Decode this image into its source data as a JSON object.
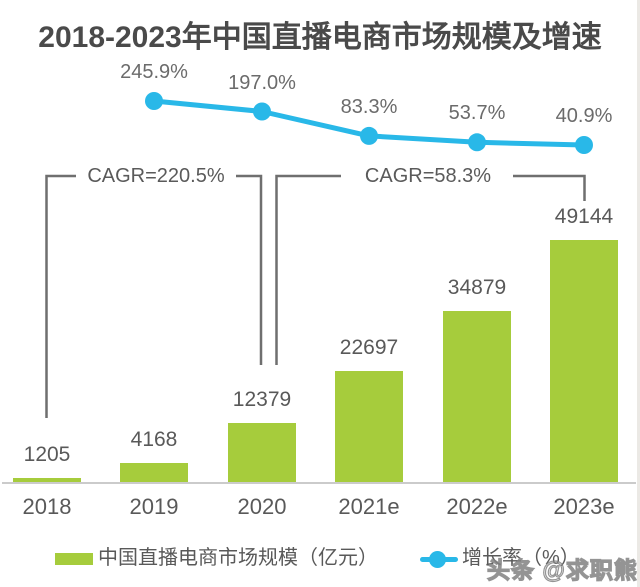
{
  "title": "2018-2023年中国直播电商市场规模及增速",
  "watermark": "头条 @求职熊",
  "annotations": {
    "cagr_left": "CAGR=220.5%",
    "cagr_right": "CAGR=58.3%"
  },
  "legend": {
    "bar_label": "中国直播电商市场规模（亿元）",
    "line_label": "增长率（%）"
  },
  "colors": {
    "bar": "#a6cc3c",
    "line": "#29b8e8",
    "title_text": "#4a4a4a",
    "label_text": "#595959",
    "bracket": "#6f6f6f",
    "axis": "#cbcbcb",
    "watermark": "#8c8c8c"
  },
  "chart_data": {
    "type": "bar+line combo",
    "title": "2018-2023年中国直播电商市场规模及增速",
    "categories": [
      "2018",
      "2019",
      "2020",
      "2021e",
      "2022e",
      "2023e"
    ],
    "series": [
      {
        "name": "中国直播电商市场规模（亿元）",
        "type": "bar",
        "values": [
          1205,
          4168,
          12379,
          22697,
          34879,
          49144
        ]
      },
      {
        "name": "增长率（%）",
        "type": "line",
        "values": [
          null,
          245.9,
          197.0,
          83.3,
          53.7,
          40.9
        ]
      }
    ],
    "value_labels": [
      "1205",
      "4168",
      "12379",
      "22697",
      "34879",
      "49144"
    ],
    "rate_labels": [
      "245.9%",
      "197.0%",
      "83.3%",
      "53.7%",
      "40.9%"
    ],
    "annotations": [
      "CAGR=220.5%",
      "CAGR=58.3%"
    ],
    "ylim_bar": [
      0,
      49144
    ],
    "grid": false,
    "legend_position": "bottom"
  }
}
